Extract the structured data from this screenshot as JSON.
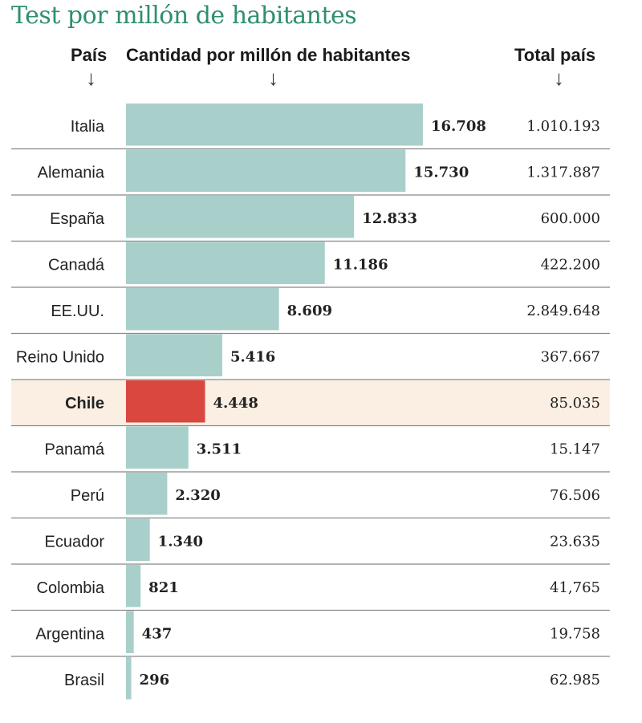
{
  "title": "Test por millón de habitantes",
  "headers": {
    "country": "País",
    "quantity": "Cantidad por millón de habitantes",
    "total": "Total país"
  },
  "arrow_glyph": "↓",
  "colors": {
    "title": "#2f8f6f",
    "bar": "#a9cfcb",
    "highlight_bar": "#d9473f",
    "highlight_row": "#faefe2",
    "divider": "#888888"
  },
  "chart_data": {
    "type": "bar",
    "orientation": "horizontal",
    "highlight": "Chile",
    "categories": [
      "Italia",
      "Alemania",
      "España",
      "Canadá",
      "EE.UU.",
      "Reino Unido",
      "Chile",
      "Panamá",
      "Perú",
      "Ecuador",
      "Colombia",
      "Argentina",
      "Brasil"
    ],
    "values": [
      16708,
      15730,
      12833,
      11186,
      8609,
      5416,
      4448,
      3511,
      2320,
      1340,
      821,
      437,
      296
    ],
    "value_labels": [
      "16.708",
      "15.730",
      "12.833",
      "11.186",
      "8.609",
      "5.416",
      "4.448",
      "3.511",
      "2.320",
      "1.340",
      "821",
      "437",
      "296"
    ],
    "totals": [
      "1.010.193",
      "1.317.887",
      "600.000",
      "422.200",
      "2.849.648",
      "367.667",
      "85.035",
      "15.147",
      "76.506",
      "23.635",
      "41,765",
      "19.758",
      "62.985"
    ],
    "xlim": [
      0,
      16708
    ]
  }
}
